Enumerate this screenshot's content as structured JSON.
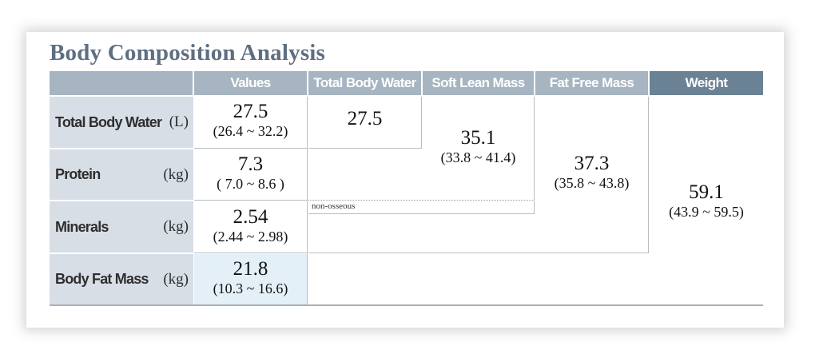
{
  "title": "Body Composition Analysis",
  "header": {
    "values": "Values",
    "total_body_water": "Total Body Water",
    "soft_lean_mass": "Soft Lean Mass",
    "fat_free_mass": "Fat Free Mass",
    "weight": "Weight"
  },
  "rows": [
    {
      "label": "Total Body Water",
      "unit": "(L)",
      "value": "27.5",
      "range": "(26.4 ~ 32.2)"
    },
    {
      "label": "Protein",
      "unit": "(kg)",
      "value": "7.3",
      "range": "( 7.0 ~ 8.6 )"
    },
    {
      "label": "Minerals",
      "unit": "(kg)",
      "value": "2.54",
      "range": "(2.44 ~ 2.98)"
    },
    {
      "label": "Body Fat Mass",
      "unit": "(kg)",
      "value": "21.8",
      "range": "(10.3 ~ 16.6)"
    }
  ],
  "cells": {
    "total_body_water": {
      "value": "27.5"
    },
    "soft_lean_mass": {
      "value": "35.1",
      "range": "(33.8 ~ 41.4)"
    },
    "fat_free_mass": {
      "value": "37.3",
      "range": "(35.8 ~ 43.8)"
    },
    "weight": {
      "value": "59.1",
      "range": "(43.9 ~ 59.5)"
    },
    "non_osseous": "non-osseous"
  },
  "colors": {
    "header_light": "#a7b4c1",
    "header_dark": "#6b8294",
    "label_bg": "#d7dee6",
    "fat_value_bg": "#e4f0f8",
    "title": "#5d6f80"
  }
}
